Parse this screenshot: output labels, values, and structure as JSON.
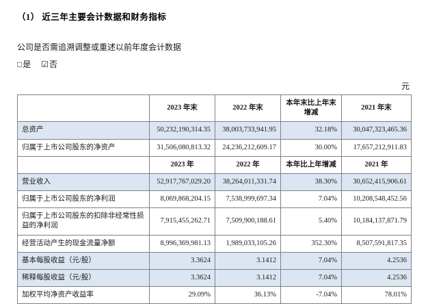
{
  "doc": {
    "title": "（1） 近三年主要会计数据和财务指标",
    "question": "公司是否需追溯调整或重述以前年度会计数据",
    "options": {
      "yes_box": "□",
      "yes_label": "是",
      "no_box": "☑",
      "no_label": "否"
    },
    "unit": "元"
  },
  "table": {
    "rows": [
      {
        "type": "header",
        "shaded": false,
        "cells": [
          "",
          "2023 年末",
          "2022 年末",
          "本年末比上年末增减",
          "2021 年末"
        ]
      },
      {
        "type": "data",
        "shaded": true,
        "cells": [
          "总资产",
          "50,232,190,314.35",
          "38,003,733,941.95",
          "32.18%",
          "30,047,323,465.36"
        ]
      },
      {
        "type": "data",
        "shaded": false,
        "cells": [
          "归属于上市公司股东的净资产",
          "31,506,080,813.32",
          "24,236,212,609.17",
          "30.00%",
          "17,657,212,911.83"
        ]
      },
      {
        "type": "header",
        "shaded": false,
        "cells": [
          "",
          "2023 年",
          "2022 年",
          "本年比上年增减",
          "2021 年"
        ]
      },
      {
        "type": "data",
        "shaded": true,
        "cells": [
          "营业收入",
          "52,917,767,029.20",
          "38,264,011,331.74",
          "38.30%",
          "30,652,415,906.61"
        ]
      },
      {
        "type": "data",
        "shaded": false,
        "cells": [
          "归属于上市公司股东的净利润",
          "8,069,868,204.15",
          "7,538,999,697.34",
          "7.04%",
          "10,208,548,452.56"
        ]
      },
      {
        "type": "data",
        "shaded": false,
        "cells": [
          "归属于上市公司股东的扣除非经常性损益的净利润",
          "7,915,455,262.71",
          "7,509,900,188.61",
          "5.40%",
          "10,184,137,871.79"
        ]
      },
      {
        "type": "data",
        "shaded": false,
        "cells": [
          "经营活动产生的现金流量净额",
          "8,996,369,981.13",
          "1,989,033,105.26",
          "352.30%",
          "8,507,591,817.35"
        ]
      },
      {
        "type": "data",
        "shaded": true,
        "cells": [
          "基本每股收益（元/股）",
          "3.3624",
          "3.1412",
          "7.04%",
          "4.2536"
        ]
      },
      {
        "type": "data",
        "shaded": true,
        "cells": [
          "稀释每股收益（元/股）",
          "3.3624",
          "3.1412",
          "7.04%",
          "4.2536"
        ]
      },
      {
        "type": "data",
        "shaded": false,
        "cells": [
          "加权平均净资产收益率",
          "29.09%",
          "36.13%",
          "-7.04%",
          "78.01%"
        ]
      }
    ]
  }
}
